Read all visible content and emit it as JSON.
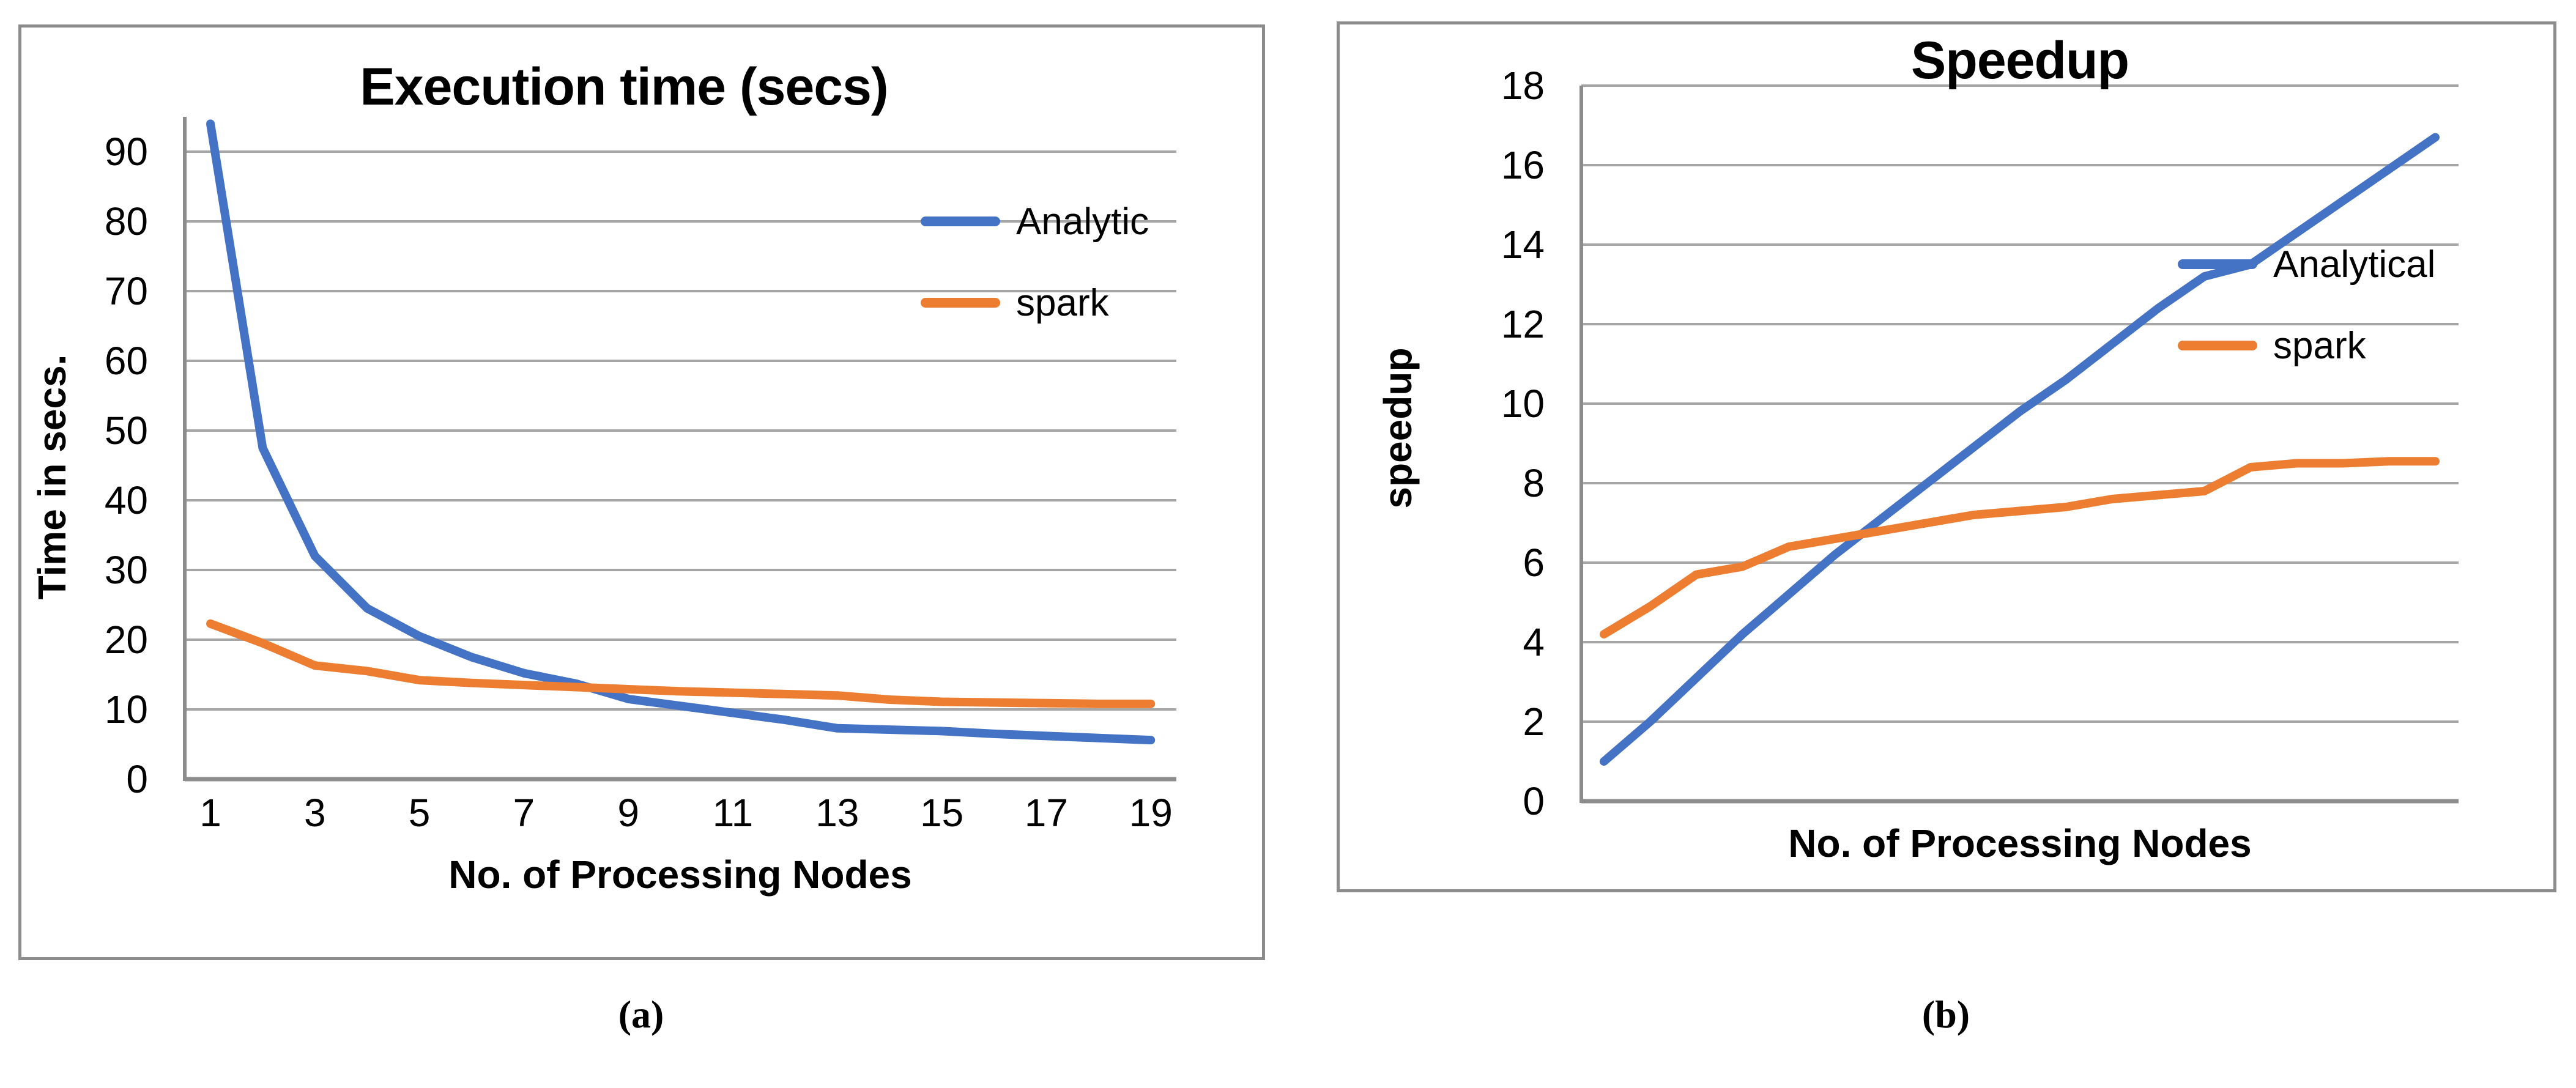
{
  "captions": {
    "a": "(a)",
    "b": "(b)"
  },
  "colors": {
    "analytic_blue": "#4472C4",
    "spark_orange": "#ED7D31",
    "gridline": "#A6A6A6",
    "axis": "#8C8C8C",
    "text": "#000000",
    "background": "#FFFFFF"
  },
  "chart_data": [
    {
      "id": "execution-time",
      "type": "line",
      "title": "Execution time (secs)",
      "xlabel": "No. of Processing Nodes",
      "ylabel": "Time in secs.",
      "x": [
        1,
        2,
        3,
        4,
        5,
        6,
        7,
        8,
        9,
        10,
        11,
        12,
        13,
        14,
        15,
        16,
        17,
        18,
        19
      ],
      "x_tick_labels": [
        "1",
        "3",
        "5",
        "7",
        "9",
        "11",
        "13",
        "15",
        "17",
        "19"
      ],
      "y_ticks": [
        0,
        10,
        20,
        30,
        40,
        50,
        60,
        70,
        80,
        90
      ],
      "ylim": [
        0,
        95
      ],
      "grid": "horizontal",
      "legend_position": "inside-right",
      "series": [
        {
          "name": "Analytic",
          "color_key": "analytic_blue",
          "values": [
            94,
            47.5,
            32,
            24.5,
            20.5,
            17.5,
            15.2,
            13.7,
            11.5,
            10.5,
            9.5,
            8.5,
            7.3,
            7.1,
            6.9,
            6.5,
            6.2,
            5.9,
            5.6
          ]
        },
        {
          "name": "spark",
          "color_key": "spark_orange",
          "values": [
            22.3,
            19.5,
            16.3,
            15.5,
            14.2,
            13.8,
            13.5,
            13.2,
            12.9,
            12.6,
            12.4,
            12.2,
            12.0,
            11.4,
            11.1,
            11.0,
            10.9,
            10.8,
            10.8
          ]
        }
      ]
    },
    {
      "id": "speedup",
      "type": "line",
      "title": "Speedup",
      "xlabel": "No. of Processing Nodes",
      "ylabel": "speedup",
      "x": [
        1,
        2,
        3,
        4,
        5,
        6,
        7,
        8,
        9,
        10,
        11,
        12,
        13,
        14,
        15,
        16,
        17,
        18,
        19
      ],
      "x_tick_labels": [],
      "y_ticks": [
        0,
        2,
        4,
        6,
        8,
        10,
        12,
        14,
        16,
        18
      ],
      "ylim": [
        0,
        18
      ],
      "grid": "horizontal",
      "legend_position": "inside-right",
      "series": [
        {
          "name": "Analytical",
          "color_key": "analytic_blue",
          "values": [
            1,
            2,
            3.1,
            4.2,
            5.2,
            6.2,
            7.1,
            8.0,
            8.9,
            9.8,
            10.6,
            11.5,
            12.4,
            13.2,
            13.5,
            14.3,
            15.1,
            15.9,
            16.7
          ]
        },
        {
          "name": "spark",
          "color_key": "spark_orange",
          "values": [
            4.2,
            4.9,
            5.7,
            5.9,
            6.4,
            6.6,
            6.8,
            7.0,
            7.2,
            7.3,
            7.4,
            7.6,
            7.7,
            7.8,
            8.4,
            8.5,
            8.5,
            8.55,
            8.55
          ]
        }
      ]
    }
  ]
}
